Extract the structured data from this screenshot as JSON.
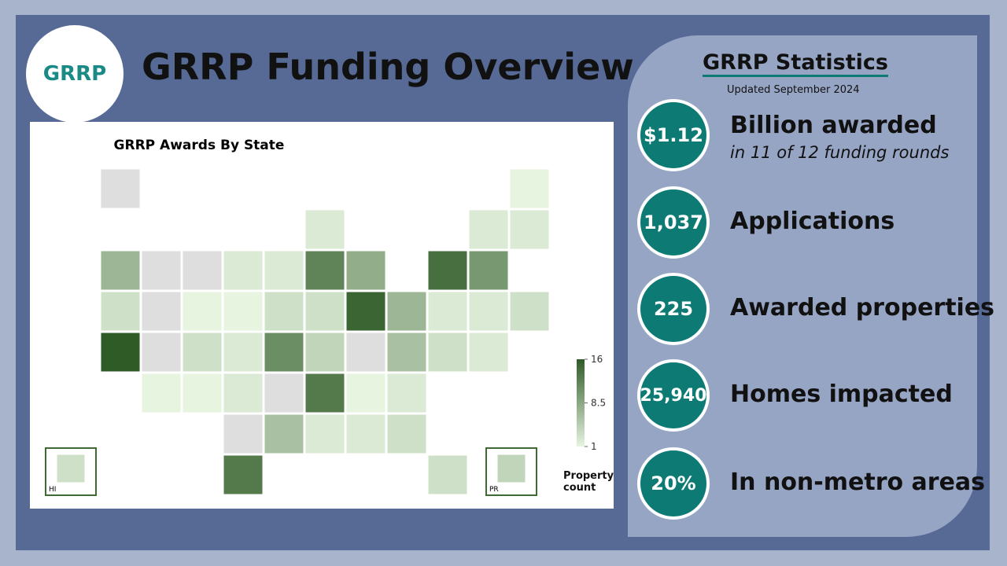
{
  "header": {
    "logo": "GRRP",
    "title": "GRRP Funding Overview"
  },
  "stats": {
    "title": "GRRP Statistics",
    "updated": "Updated September 2024",
    "items": [
      {
        "value": "$1.12",
        "label": "Billion awarded",
        "note": "in 11 of 12 funding rounds"
      },
      {
        "value": "1,037",
        "label": "Applications"
      },
      {
        "value": "225",
        "label": "Awarded properties"
      },
      {
        "value": "25,940",
        "label": "Homes impacted"
      },
      {
        "value": "20%",
        "label": "In non-metro areas"
      }
    ]
  },
  "chart_data": {
    "type": "choropleth",
    "title": "GRRP Awards By State",
    "values": [
      null,
      1,
      2,
      2,
      2,
      7,
      null,
      null,
      2,
      2,
      12,
      8,
      14,
      10,
      3,
      null,
      1,
      1,
      3,
      3,
      15,
      7,
      2,
      2,
      3,
      16,
      null,
      3,
      2,
      11,
      4,
      null,
      6,
      3,
      2,
      1,
      1,
      2,
      null,
      13,
      1,
      2,
      null,
      6,
      2,
      2,
      3,
      13,
      3,
      3,
      4
    ],
    "colorscale": [
      "#e6f4e0",
      "#2f5b27"
    ],
    "missing_color": "#dedede",
    "clim": [
      1,
      16
    ],
    "cticks": [
      1,
      8.5,
      16
    ],
    "legend_title": "Property count",
    "insets": [
      "HI",
      "PR"
    ]
  }
}
